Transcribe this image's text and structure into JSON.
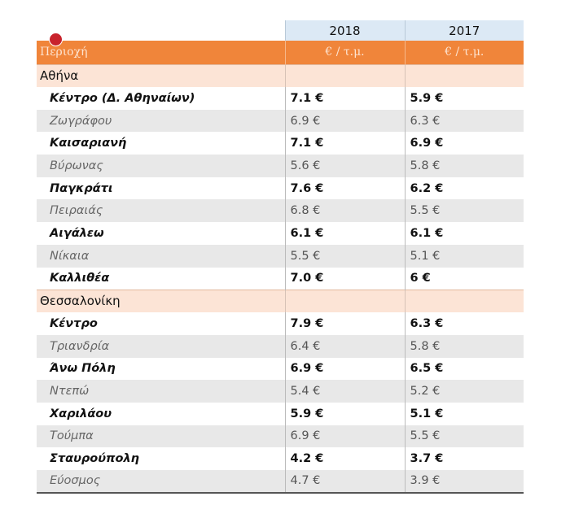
{
  "header": {
    "years": [
      "2018",
      "2017"
    ],
    "units": [
      "Περιοχή",
      "€ / τ.μ.",
      "€ / τ.μ."
    ]
  },
  "sections": [
    {
      "name": "Αθήνα",
      "rows": [
        [
          "Κέντρο (Δ. Αθηναίων)",
          "7.1 €",
          "5.9 €"
        ],
        [
          "Ζωγράφου",
          "6.9 €",
          "6.3 €"
        ],
        [
          "Καισαριανή",
          "7.1 €",
          "6.9 €"
        ],
        [
          "Βύρωνας",
          "5.6 €",
          "5.8 €"
        ],
        [
          "Παγκράτι",
          "7.6 €",
          "6.2 €"
        ],
        [
          "Πειραιάς",
          "6.8 €",
          "5.5 €"
        ],
        [
          "Αιγάλεω",
          "6.1 €",
          "6.1 €"
        ],
        [
          "Νίκαια",
          "5.5 €",
          "5.1 €"
        ],
        [
          "Καλλιθέα",
          "7.0 €",
          "6 €"
        ]
      ]
    },
    {
      "name": "Θεσσαλονίκη",
      "rows": [
        [
          "Κέντρο",
          "7.9 €",
          "6.3 €"
        ],
        [
          "Τριανδρία",
          "6.4 €",
          "5.8 €"
        ],
        [
          "Άνω Πόλη",
          "6.9 €",
          "6.5 €"
        ],
        [
          "Ντεπώ",
          "5.4 €",
          "5.2 €"
        ],
        [
          "Χαριλάου",
          "5.9 €",
          "5.1 €"
        ],
        [
          "Τούμπα",
          "6.9 €",
          "5.5 €"
        ],
        [
          "Σταυρούπολη",
          "4.2 €",
          "3.7 €"
        ],
        [
          "Εύοσμος",
          "4.7 €",
          "3.9 €"
        ]
      ]
    }
  ]
}
